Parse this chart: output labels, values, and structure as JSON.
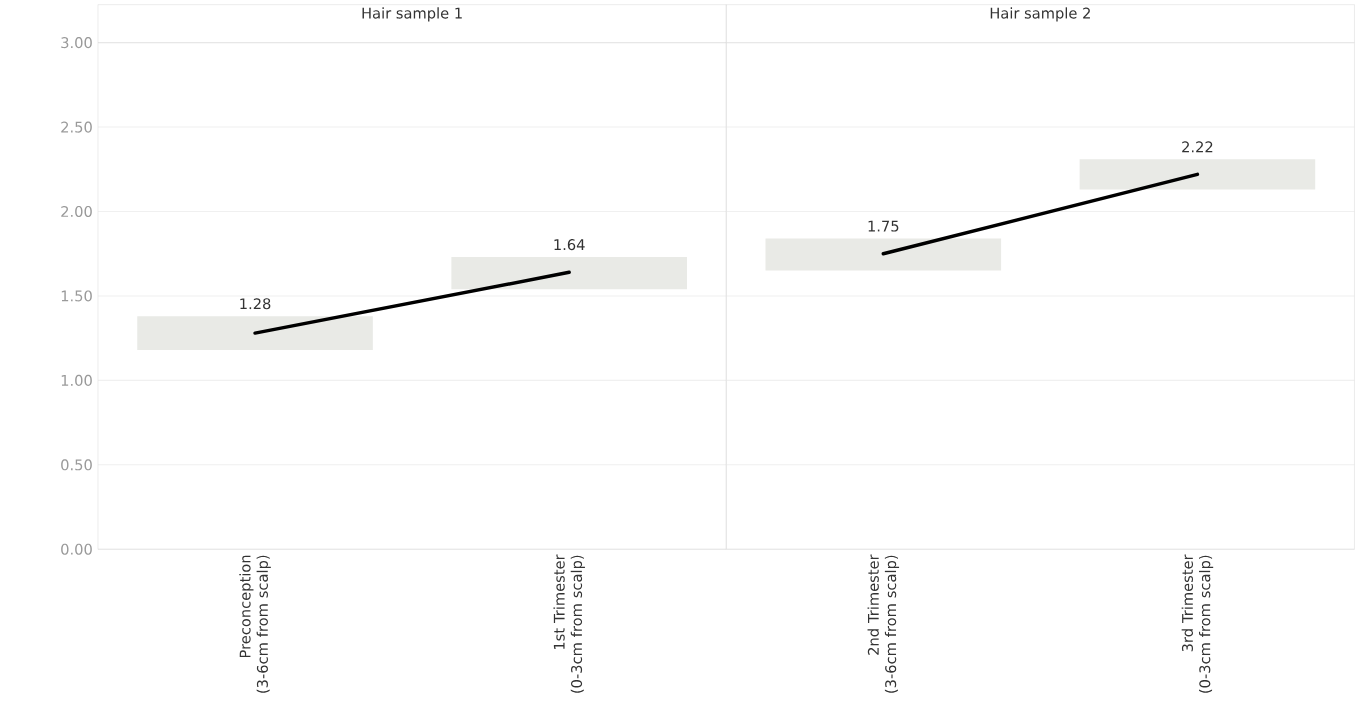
{
  "chart_data": [
    {
      "type": "line",
      "title": "Hair sample 1",
      "categories": [
        "Preconception (3-6cm from scalp)",
        "1st Trimester (0-3cm from scalp)"
      ],
      "series": [
        {
          "type": "bar",
          "color": "#e9eae6",
          "base": [
            1.18,
            1.54
          ],
          "values": [
            0.2,
            0.19
          ]
        },
        {
          "color": "#000000",
          "values": [
            1.28,
            1.64
          ],
          "value_labels": [
            "1.28",
            "1.64"
          ]
        }
      ],
      "ylim": [
        0,
        3
      ],
      "yticks": [
        {
          "value": 0,
          "label": "0.00"
        },
        {
          "value": 0.5,
          "label": "0.50"
        },
        {
          "value": 1,
          "label": "1.00"
        },
        {
          "value": 1.5,
          "label": "1.50"
        },
        {
          "value": 2,
          "label": "2.00"
        },
        {
          "value": 2.5,
          "label": "2.50"
        },
        {
          "value": 3,
          "label": "3.00"
        }
      ],
      "grid": "y",
      "line_style": "solid"
    },
    {
      "type": "line",
      "title": "Hair sample 2",
      "categories": [
        "2nd Trimester (3-6cm from scalp)",
        "3rd Trimester (0-3cm from scalp)"
      ],
      "series": [
        {
          "type": "bar",
          "color": "#e9eae6",
          "base": [
            1.65,
            2.13
          ],
          "values": [
            0.19,
            0.18
          ]
        },
        {
          "color": "#000000",
          "values": [
            1.75,
            2.22
          ],
          "value_labels": [
            "1.75",
            "2.22"
          ]
        }
      ],
      "ylim": [
        0,
        3
      ],
      "yticks": [
        0,
        0.5,
        1,
        1.5,
        2,
        2.5,
        3
      ],
      "grid": "y",
      "line_style": "solid",
      "tick_labels": "x"
    }
  ]
}
